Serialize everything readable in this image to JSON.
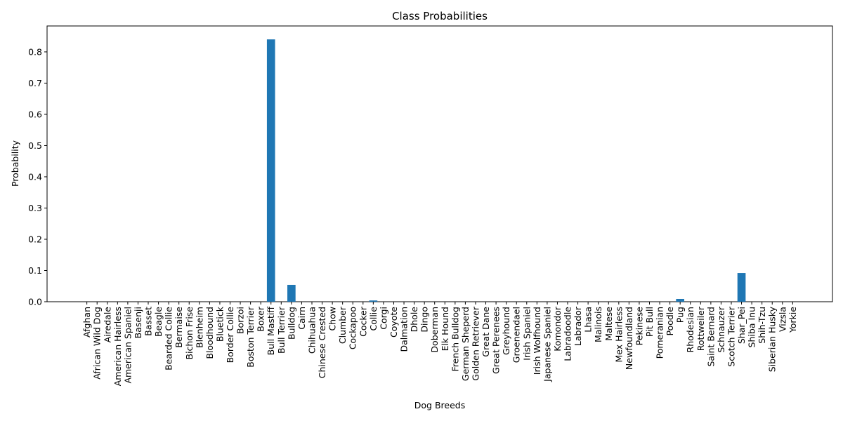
{
  "chart_data": {
    "type": "bar",
    "title": "Class Probabilities",
    "x_label": "Dog Breeds",
    "y_label": "Probability",
    "categories": [
      "Afghan",
      "African Wild Dog",
      "Airedale",
      "American Hairless",
      "American Spaniel",
      "Basenji",
      "Basset",
      "Beagle",
      "Bearded Collie",
      "Bermaise",
      "Bichon Frise",
      "Blenheim",
      "Bloodhound",
      "Bluetick",
      "Border Collie",
      "Borzoi",
      "Boston Terrier",
      "Boxer",
      "Bull Mastiff",
      "Bull Terrier",
      "Bulldog",
      "Cairn",
      "Chihuahua",
      "Chinese Crested",
      "Chow",
      "Clumber",
      "Cockapoo",
      "Cocker",
      "Collie",
      "Corgi",
      "Coyote",
      "Dalmation",
      "Dhole",
      "Dingo",
      "Doberman",
      "Elk Hound",
      "French Bulldog",
      "German Sheperd",
      "Golden Retriever",
      "Great Dane",
      "Great Perenees",
      "Greyhound",
      "Groenendael",
      "Irish Spaniel",
      "Irish Wolfhound",
      "Japanese Spaniel",
      "Komondor",
      "Labradoodle",
      "Labrador",
      "Lhasa",
      "Malinois",
      "Maltese",
      "Mex Hairless",
      "Newfoundland",
      "Pekinese",
      "Pit Bull",
      "Pomeranian",
      "Poodle",
      "Pug",
      "Rhodesian",
      "Rottweiler",
      "Saint Bernard",
      "Schnauzer",
      "Scotch Terrier",
      "Shar_Pei",
      "Shiba Inu",
      "Shih-Tzu",
      "Siberian Husky",
      "Vizsla",
      "Yorkie"
    ],
    "values": [
      0,
      0,
      0,
      0,
      0,
      0,
      0,
      0,
      0,
      0,
      0,
      0,
      0,
      0,
      0,
      0,
      0,
      0,
      0.84,
      0,
      0.054,
      0,
      0,
      0,
      0,
      0,
      0,
      0,
      0.004,
      0,
      0,
      0,
      0,
      0,
      0,
      0,
      0,
      0,
      0,
      0,
      0,
      0,
      0,
      0,
      0,
      0,
      0,
      0,
      0,
      0,
      0,
      0,
      0,
      0,
      0,
      0,
      0,
      0,
      0.009,
      0,
      0,
      0,
      0,
      0,
      0.092,
      0,
      0,
      0,
      0,
      0
    ],
    "color": "#1f77b4",
    "ylim": [
      0,
      0.883
    ],
    "yticks": [
      {
        "value": 0,
        "label": "0.0"
      },
      {
        "value": 0.1,
        "label": "0.1"
      },
      {
        "value": 0.2,
        "label": "0.2"
      },
      {
        "value": 0.3,
        "label": "0.3"
      },
      {
        "value": 0.4,
        "label": "0.4"
      },
      {
        "value": 0.5,
        "label": "0.5"
      },
      {
        "value": 0.6,
        "label": "0.6"
      },
      {
        "value": 0.7,
        "label": "0.7"
      },
      {
        "value": 0.8,
        "label": "0.8"
      }
    ],
    "grid": false
  }
}
